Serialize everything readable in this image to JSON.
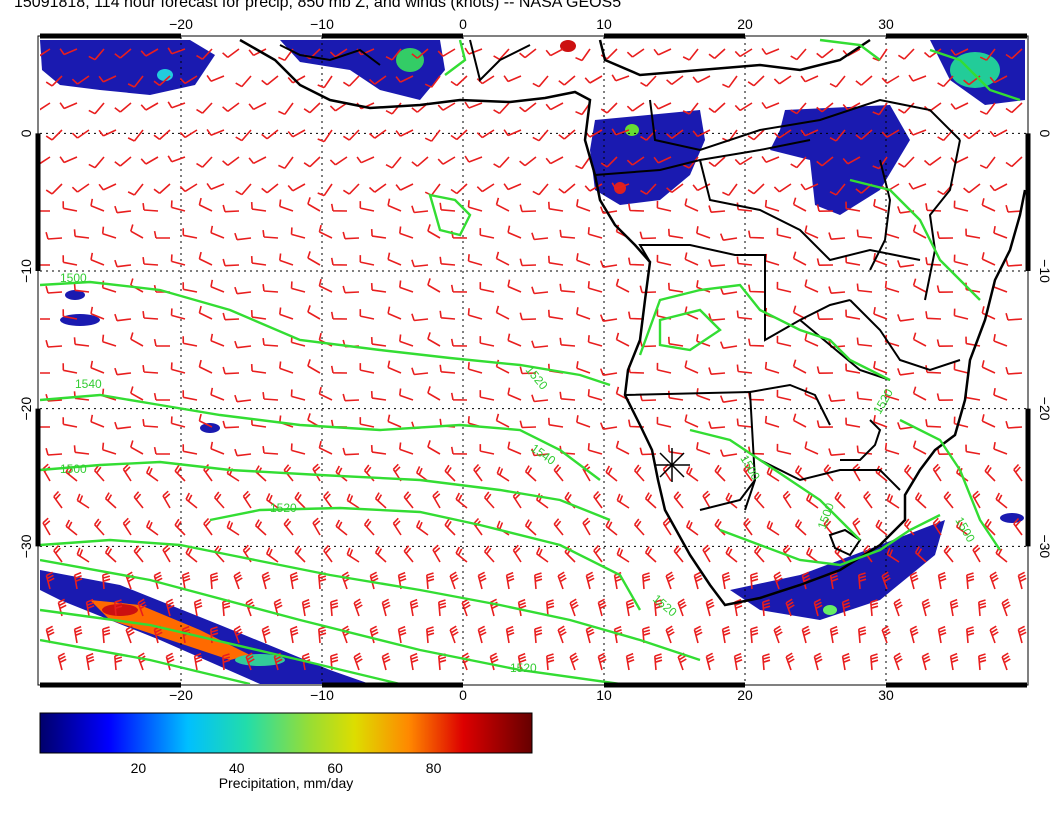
{
  "title": "15091818, 114 hour forecast for precip, 850 mb Z, and winds (knots) -- NASA GEOS5",
  "map": {
    "lon_ticks": [
      "−20",
      "−10",
      "0",
      "10",
      "20",
      "30"
    ],
    "lat_ticks": [
      "0",
      "−10",
      "−20",
      "−30"
    ],
    "lon_range": [
      -30,
      40
    ],
    "lat_range": [
      -40,
      7
    ],
    "contour_labels": [
      "1500",
      "1540",
      "1500",
      "1520",
      "1540",
      "1520",
      "1520",
      "1500",
      "1500",
      "1520",
      "1520",
      "1500"
    ],
    "colors": {
      "contour": "#33dd33",
      "wind_barb": "#e81e1e",
      "coast": "#000000"
    }
  },
  "colorbar": {
    "label": "Precipitation, mm/day",
    "ticks": [
      "20",
      "40",
      "60",
      "80"
    ],
    "range": [
      0,
      100
    ],
    "colors": [
      "#00008b",
      "#0000ff",
      "#00bfff",
      "#22ddaa",
      "#99dd33",
      "#dddd00",
      "#ff8800",
      "#dd0000",
      "#660000"
    ]
  }
}
